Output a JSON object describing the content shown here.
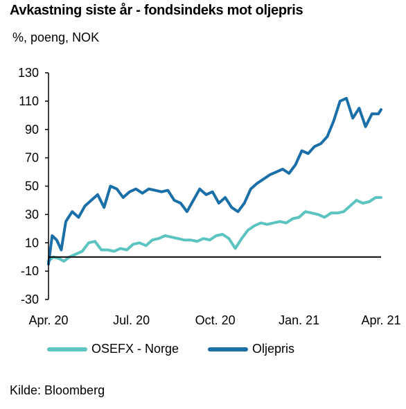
{
  "title": "Avkastning siste år - fondsindeks mot oljepris",
  "unit_label": "%, poeng, NOK",
  "source": "Kilde: Bloomberg",
  "colors": {
    "osefx": "#5bc4c0",
    "oil": "#1a6fa8",
    "axis": "#000000"
  },
  "chart_data": {
    "type": "line",
    "title": "Avkastning siste år - fondsindeks mot oljepris",
    "ylabel": "%, poeng, NOK",
    "ylim": [
      -30,
      130
    ],
    "yticks": [
      -30,
      -10,
      10,
      30,
      50,
      70,
      90,
      110,
      130
    ],
    "xlim": [
      "2020-04-01",
      "2021-04-01"
    ],
    "xticks": [
      "2020-04-01",
      "2020-07-01",
      "2020-10-01",
      "2021-01-01",
      "2021-04-01"
    ],
    "xtick_labels": [
      "Apr. 20",
      "Jul. 20",
      "Oct. 20",
      "Jan. 21",
      "Apr. 21"
    ],
    "zero_line": 0,
    "legend": "bottom",
    "series": [
      {
        "name": "OSEFX - Norge",
        "x": [
          "2020-04-01",
          "2020-04-06",
          "2020-04-12",
          "2020-04-18",
          "2020-04-24",
          "2020-05-01",
          "2020-05-08",
          "2020-05-15",
          "2020-05-22",
          "2020-05-29",
          "2020-06-05",
          "2020-06-12",
          "2020-06-19",
          "2020-06-26",
          "2020-07-03",
          "2020-07-10",
          "2020-07-17",
          "2020-07-24",
          "2020-07-31",
          "2020-08-07",
          "2020-08-14",
          "2020-08-21",
          "2020-08-28",
          "2020-09-04",
          "2020-09-11",
          "2020-09-18",
          "2020-09-25",
          "2020-10-02",
          "2020-10-09",
          "2020-10-16",
          "2020-10-23",
          "2020-10-30",
          "2020-11-06",
          "2020-11-13",
          "2020-11-20",
          "2020-11-27",
          "2020-12-04",
          "2020-12-11",
          "2020-12-18",
          "2020-12-25",
          "2021-01-01",
          "2021-01-08",
          "2021-01-15",
          "2021-01-22",
          "2021-01-29",
          "2021-02-05",
          "2021-02-12",
          "2021-02-19",
          "2021-02-26",
          "2021-03-05",
          "2021-03-12",
          "2021-03-19",
          "2021-03-26",
          "2021-04-01"
        ],
        "values": [
          -3,
          0,
          -1,
          -3,
          0,
          2,
          4,
          10,
          11,
          5,
          5,
          4,
          6,
          5,
          9,
          10,
          8,
          12,
          13,
          15,
          14,
          13,
          12,
          12,
          11,
          13,
          12,
          15,
          16,
          13,
          6,
          13,
          19,
          22,
          24,
          23,
          24,
          25,
          24,
          27,
          28,
          32,
          31,
          30,
          28,
          31,
          31,
          32,
          36,
          40,
          38,
          39,
          42,
          42
        ]
      },
      {
        "name": "Oljepris",
        "x": [
          "2020-04-01",
          "2020-04-05",
          "2020-04-10",
          "2020-04-15",
          "2020-04-20",
          "2020-04-27",
          "2020-05-04",
          "2020-05-11",
          "2020-05-18",
          "2020-05-25",
          "2020-06-01",
          "2020-06-08",
          "2020-06-15",
          "2020-06-22",
          "2020-06-29",
          "2020-07-06",
          "2020-07-13",
          "2020-07-20",
          "2020-07-27",
          "2020-08-03",
          "2020-08-10",
          "2020-08-17",
          "2020-08-24",
          "2020-08-31",
          "2020-09-07",
          "2020-09-14",
          "2020-09-21",
          "2020-09-28",
          "2020-10-05",
          "2020-10-12",
          "2020-10-19",
          "2020-10-26",
          "2020-11-02",
          "2020-11-09",
          "2020-11-16",
          "2020-11-23",
          "2020-11-30",
          "2020-12-07",
          "2020-12-14",
          "2020-12-21",
          "2020-12-28",
          "2021-01-04",
          "2021-01-11",
          "2021-01-18",
          "2021-01-25",
          "2021-02-01",
          "2021-02-08",
          "2021-02-15",
          "2021-02-22",
          "2021-03-01",
          "2021-03-08",
          "2021-03-15",
          "2021-03-22",
          "2021-03-29",
          "2021-04-01"
        ],
        "values": [
          -5,
          15,
          12,
          5,
          25,
          32,
          28,
          36,
          40,
          44,
          35,
          50,
          48,
          42,
          46,
          48,
          45,
          48,
          47,
          46,
          47,
          40,
          38,
          32,
          40,
          48,
          44,
          46,
          38,
          42,
          35,
          32,
          38,
          48,
          52,
          55,
          58,
          60,
          62,
          59,
          65,
          75,
          73,
          78,
          80,
          85,
          96,
          110,
          112,
          98,
          105,
          92,
          101,
          101,
          104
        ]
      }
    ]
  }
}
